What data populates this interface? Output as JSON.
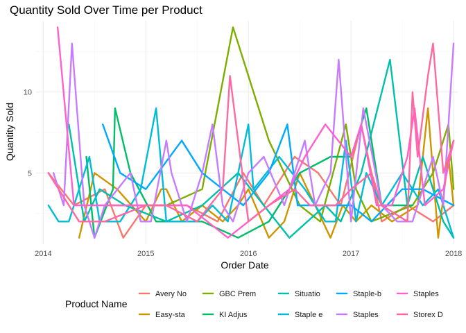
{
  "chart_data": {
    "type": "line",
    "title": "Quantity Sold Over Time per Product",
    "xlabel": "Order Date",
    "ylabel": "Quantity Sold",
    "xlim": [
      2013.93,
      2018.04
    ],
    "ylim": [
      0.6,
      14.4
    ],
    "x_ticks": [
      2014,
      2015,
      2016,
      2017,
      2018
    ],
    "x_tick_labels": [
      "2014",
      "2015",
      "2016",
      "2017",
      "2018"
    ],
    "x_minor_ticks": [
      2014.5,
      2015.5,
      2016.5,
      2017.5
    ],
    "y_ticks": [
      5,
      10
    ],
    "y_tick_labels": [
      "5",
      "10"
    ],
    "y_minor_ticks": [
      2.5,
      7.5,
      12.5
    ],
    "grid": true,
    "legend": {
      "title": "Product Name",
      "position": "bottom",
      "ncol": 5
    },
    "series": [
      {
        "name": "Avery No",
        "color": "#F8766D",
        "points": [
          [
            2014.05,
            5
          ],
          [
            2014.3,
            3
          ],
          [
            2014.6,
            4
          ],
          [
            2014.78,
            1
          ],
          [
            2015.0,
            3
          ],
          [
            2015.4,
            3
          ],
          [
            2015.7,
            2
          ],
          [
            2015.95,
            5
          ],
          [
            2016.15,
            3
          ],
          [
            2016.45,
            6
          ],
          [
            2016.68,
            5
          ],
          [
            2016.9,
            3
          ],
          [
            2017.1,
            8
          ],
          [
            2017.3,
            2
          ],
          [
            2017.55,
            3
          ],
          [
            2017.8,
            2
          ],
          [
            2018.0,
            3
          ]
        ]
      },
      {
        "name": "Easy-sta",
        "color": "#CD9600",
        "points": [
          [
            2014.35,
            1
          ],
          [
            2014.5,
            5
          ],
          [
            2014.72,
            4
          ],
          [
            2015.0,
            2
          ],
          [
            2015.15,
            4
          ],
          [
            2015.2,
            4
          ],
          [
            2015.35,
            2
          ],
          [
            2015.55,
            3
          ],
          [
            2015.75,
            2
          ],
          [
            2015.9,
            3
          ],
          [
            2016.0,
            4
          ],
          [
            2016.2,
            1
          ],
          [
            2016.35,
            2
          ],
          [
            2016.5,
            5
          ],
          [
            2016.8,
            1
          ],
          [
            2016.92,
            3
          ],
          [
            2017.05,
            2
          ],
          [
            2017.2,
            3
          ],
          [
            2017.4,
            2
          ],
          [
            2017.65,
            3
          ],
          [
            2017.75,
            9
          ],
          [
            2017.85,
            1
          ],
          [
            2017.95,
            6
          ],
          [
            2018.0,
            3
          ]
        ]
      },
      {
        "name": "GBC Prem",
        "color": "#7CAE00",
        "points": [
          [
            2014.6,
            3
          ],
          [
            2015.2,
            3
          ],
          [
            2015.55,
            4
          ],
          [
            2015.85,
            14
          ],
          [
            2016.2,
            7
          ],
          [
            2016.5,
            3
          ],
          [
            2016.7,
            2
          ],
          [
            2016.95,
            8
          ],
          [
            2017.05,
            4
          ],
          [
            2017.2,
            2
          ],
          [
            2017.6,
            3
          ],
          [
            2017.8,
            5
          ],
          [
            2017.95,
            8
          ],
          [
            2018.0,
            4
          ]
        ]
      },
      {
        "name": "KI Adjus",
        "color": "#00BE67",
        "points": [
          [
            2014.42,
            6
          ],
          [
            2014.5,
            1
          ],
          [
            2014.68,
            4
          ],
          [
            2014.7,
            9
          ],
          [
            2014.85,
            5
          ],
          [
            2015.1,
            2
          ],
          [
            2015.55,
            2
          ],
          [
            2015.9,
            1
          ],
          [
            2016.2,
            2
          ],
          [
            2016.5,
            5
          ],
          [
            2016.8,
            6
          ],
          [
            2017.0,
            6
          ],
          [
            2017.15,
            9
          ],
          [
            2017.3,
            3
          ],
          [
            2017.6,
            3
          ]
        ]
      },
      {
        "name": "Situatio",
        "color": "#00BFAB",
        "points": [
          [
            2014.25,
            8
          ],
          [
            2014.4,
            2
          ],
          [
            2014.55,
            4
          ],
          [
            2014.8,
            3
          ],
          [
            2015.2,
            2
          ],
          [
            2015.55,
            3
          ],
          [
            2015.9,
            5
          ],
          [
            2016.15,
            3
          ],
          [
            2016.4,
            1
          ],
          [
            2016.75,
            3
          ],
          [
            2016.9,
            2
          ],
          [
            2017.1,
            5
          ],
          [
            2017.38,
            12
          ],
          [
            2017.55,
            3
          ],
          [
            2017.7,
            6
          ],
          [
            2017.9,
            2
          ],
          [
            2018.0,
            1
          ]
        ]
      },
      {
        "name": "Staple e",
        "color": "#00BCD8",
        "points": [
          [
            2014.05,
            3
          ],
          [
            2014.15,
            2
          ],
          [
            2014.25,
            2
          ],
          [
            2014.45,
            6
          ],
          [
            2014.55,
            2
          ],
          [
            2014.75,
            2
          ],
          [
            2014.95,
            4
          ],
          [
            2015.1,
            9
          ],
          [
            2015.2,
            2
          ],
          [
            2015.35,
            2
          ],
          [
            2015.5,
            2
          ],
          [
            2015.65,
            3
          ],
          [
            2015.8,
            2
          ],
          [
            2016.0,
            8
          ],
          [
            2016.05,
            4
          ],
          [
            2016.3,
            6
          ],
          [
            2016.55,
            4
          ],
          [
            2016.75,
            2
          ],
          [
            2016.85,
            2
          ],
          [
            2016.95,
            7
          ],
          [
            2017.05,
            2
          ],
          [
            2017.15,
            5
          ],
          [
            2017.3,
            3
          ],
          [
            2017.5,
            5
          ],
          [
            2017.7,
            3
          ],
          [
            2017.85,
            4
          ],
          [
            2018.0,
            1
          ]
        ]
      },
      {
        "name": "Staple-b",
        "color": "#00A9FF",
        "points": [
          [
            2014.58,
            8
          ],
          [
            2014.75,
            5
          ],
          [
            2015.0,
            4
          ],
          [
            2015.35,
            7
          ],
          [
            2015.55,
            5
          ],
          [
            2015.75,
            4
          ],
          [
            2015.95,
            3
          ],
          [
            2016.2,
            5
          ],
          [
            2016.38,
            8
          ],
          [
            2016.48,
            3
          ],
          [
            2016.72,
            3
          ],
          [
            2017.0,
            3
          ],
          [
            2017.2,
            2
          ],
          [
            2017.5,
            4
          ],
          [
            2017.7,
            4
          ],
          [
            2018.0,
            3
          ]
        ]
      },
      {
        "name": "Staples",
        "color": "#C77CFF",
        "points": [
          [
            2014.1,
            5
          ],
          [
            2014.2,
            3
          ],
          [
            2014.28,
            13
          ],
          [
            2014.4,
            3
          ],
          [
            2014.5,
            1
          ],
          [
            2014.6,
            3
          ],
          [
            2014.85,
            5
          ],
          [
            2014.95,
            2
          ],
          [
            2015.05,
            2
          ],
          [
            2015.2,
            7
          ],
          [
            2015.25,
            5
          ],
          [
            2015.4,
            2
          ],
          [
            2015.55,
            5
          ],
          [
            2015.65,
            8
          ],
          [
            2015.75,
            3
          ],
          [
            2015.85,
            2
          ],
          [
            2016.0,
            5
          ],
          [
            2016.15,
            6
          ],
          [
            2016.35,
            3
          ],
          [
            2016.55,
            7
          ],
          [
            2016.65,
            3
          ],
          [
            2016.8,
            5
          ],
          [
            2016.88,
            12
          ],
          [
            2017.0,
            2
          ],
          [
            2017.12,
            9
          ],
          [
            2017.3,
            3
          ],
          [
            2017.45,
            2
          ],
          [
            2017.6,
            2
          ],
          [
            2017.8,
            6
          ],
          [
            2017.9,
            3
          ],
          [
            2018.0,
            13
          ]
        ]
      },
      {
        "name": "Staples",
        "color": "#FF61CC",
        "points": [
          [
            2014.14,
            14
          ],
          [
            2014.3,
            3
          ],
          [
            2014.4,
            3
          ],
          [
            2014.6,
            3
          ],
          [
            2015.0,
            3
          ],
          [
            2015.4,
            3
          ],
          [
            2015.8,
            1
          ],
          [
            2016.0,
            2
          ],
          [
            2016.2,
            3
          ],
          [
            2016.4,
            4
          ],
          [
            2016.55,
            6
          ],
          [
            2016.75,
            8
          ],
          [
            2017.0,
            6
          ],
          [
            2017.1,
            8
          ],
          [
            2017.25,
            3
          ],
          [
            2017.4,
            3
          ],
          [
            2017.55,
            6
          ],
          [
            2017.62,
            9
          ],
          [
            2017.72,
            3
          ],
          [
            2017.9,
            4
          ],
          [
            2018.0,
            7
          ]
        ]
      },
      {
        "name": "Storex D",
        "color": "#FF68A1",
        "points": [
          [
            2014.05,
            5
          ],
          [
            2014.35,
            2
          ],
          [
            2014.6,
            2
          ],
          [
            2015.0,
            3
          ],
          [
            2015.2,
            3
          ],
          [
            2015.5,
            2
          ],
          [
            2015.75,
            4
          ],
          [
            2015.82,
            11
          ],
          [
            2016.0,
            2
          ],
          [
            2016.2,
            3
          ],
          [
            2016.45,
            4
          ],
          [
            2016.6,
            3
          ],
          [
            2016.85,
            3
          ],
          [
            2017.0,
            4
          ],
          [
            2017.2,
            5
          ],
          [
            2017.3,
            3
          ],
          [
            2017.55,
            2
          ],
          [
            2017.6,
            10
          ],
          [
            2017.65,
            6
          ],
          [
            2017.75,
            11
          ],
          [
            2017.8,
            13
          ],
          [
            2017.9,
            5
          ],
          [
            2018.0,
            7
          ]
        ]
      }
    ]
  }
}
